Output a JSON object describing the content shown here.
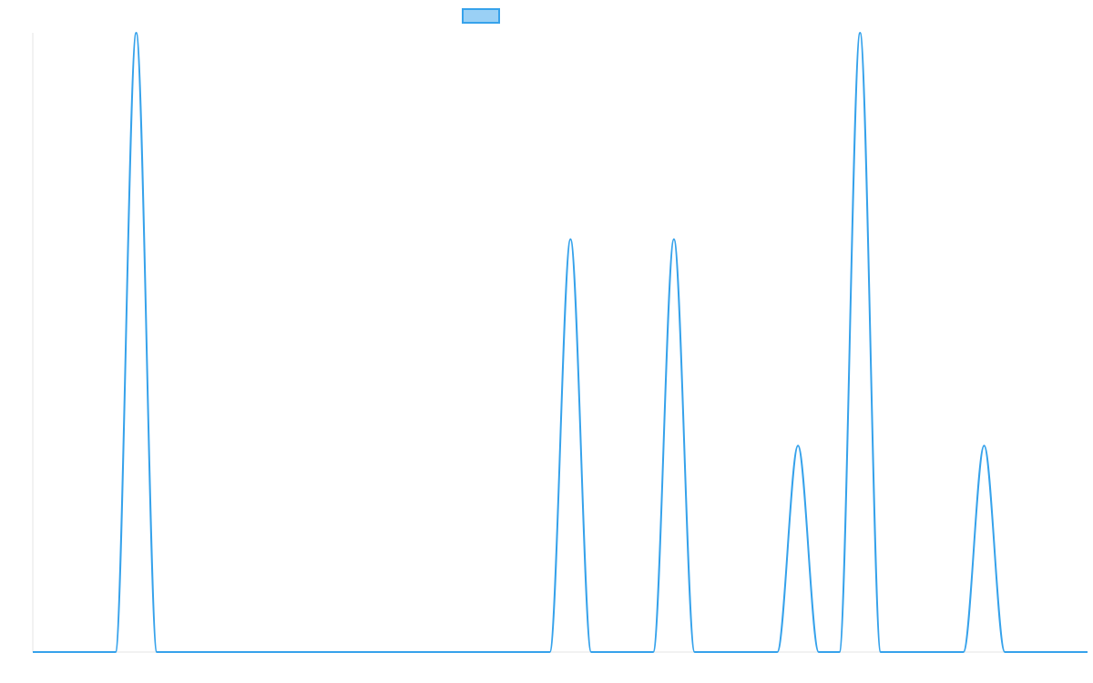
{
  "chart_data": {
    "type": "line",
    "title": "",
    "xlabel": "",
    "ylabel": "",
    "xlim": [
      0,
      51
    ],
    "ylim": [
      0,
      3
    ],
    "grid": false,
    "legend_position": "top-center",
    "series": [
      {
        "color": "#36a2eb",
        "fill": "#9ad0f5",
        "x": [
          0,
          1,
          2,
          3,
          4,
          5,
          6,
          7,
          8,
          9,
          10,
          11,
          12,
          13,
          14,
          15,
          16,
          17,
          18,
          19,
          20,
          21,
          22,
          23,
          24,
          25,
          26,
          27,
          28,
          29,
          30,
          31,
          32,
          33,
          34,
          35,
          36,
          37,
          38,
          39,
          40,
          41,
          42,
          43,
          44,
          45,
          46,
          47,
          48,
          49,
          50,
          51
        ],
        "y": [
          0,
          0,
          0,
          0,
          0,
          3,
          0,
          0,
          0,
          0,
          0,
          0,
          0,
          0,
          0,
          0,
          0,
          0,
          0,
          0,
          0,
          0,
          0,
          0,
          0,
          0,
          2,
          0,
          0,
          0,
          0,
          2,
          0,
          0,
          0,
          0,
          0,
          1,
          0,
          0,
          3,
          0,
          0,
          0,
          0,
          0,
          1,
          0,
          0,
          0,
          0,
          0
        ]
      }
    ]
  }
}
